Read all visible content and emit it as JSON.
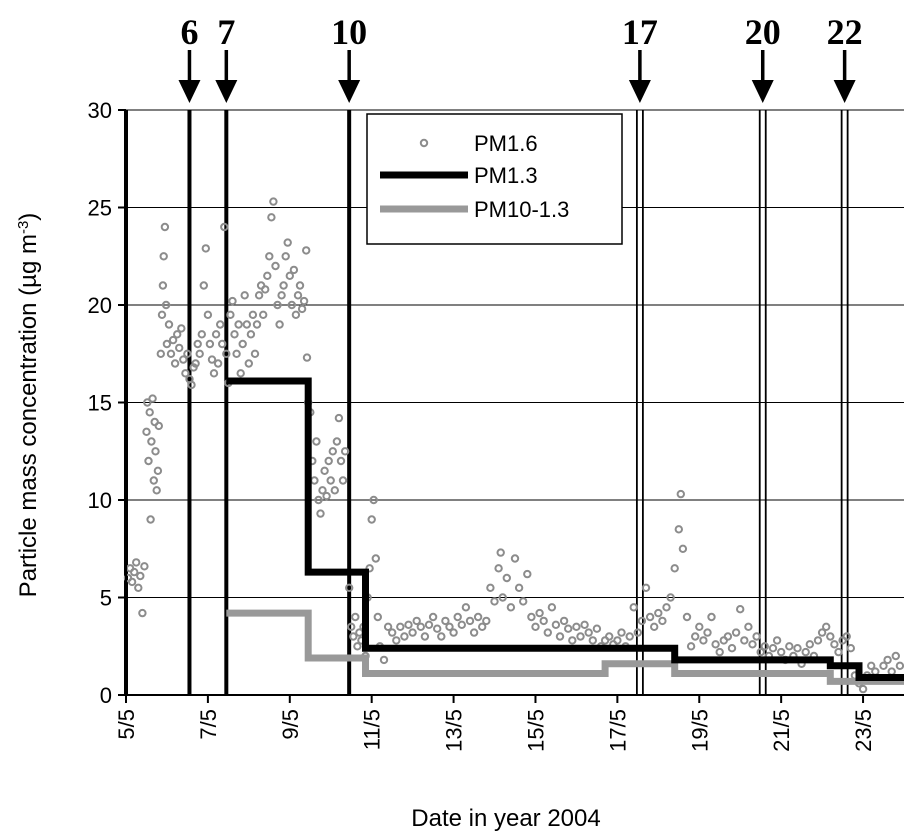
{
  "chart_data": {
    "type": "line",
    "xlabel": "Date in year 2004",
    "ylabel": "Particle mass concentration (µg m",
    "ylabel_sup": "-3",
    "ylabel_end": ")",
    "ylim": [
      0,
      30
    ],
    "yticks": [
      0,
      5,
      10,
      15,
      20,
      25,
      30
    ],
    "xlim": [
      5.0,
      24.0
    ],
    "xticks": [
      {
        "value": 5,
        "label": "5/5"
      },
      {
        "value": 7,
        "label": "7/5"
      },
      {
        "value": 9,
        "label": "9/5"
      },
      {
        "value": 11,
        "label": "11/5"
      },
      {
        "value": 13,
        "label": "13/5"
      },
      {
        "value": 15,
        "label": "15/5"
      },
      {
        "value": 17,
        "label": "17/5"
      },
      {
        "value": 19,
        "label": "19/5"
      },
      {
        "value": 21,
        "label": "21/5"
      },
      {
        "value": 23,
        "label": "23/5"
      }
    ],
    "grid": true,
    "legend_position": "top-center",
    "events": [
      {
        "label": "6",
        "day": 6.55
      },
      {
        "label": "7",
        "day": 7.45
      },
      {
        "label": "10",
        "day": 10.45
      },
      {
        "label": "17",
        "day": 17.55
      },
      {
        "label": "20",
        "day": 20.55
      },
      {
        "label": "22",
        "day": 22.55
      }
    ],
    "markers_single": [
      5.0,
      6.55,
      7.45,
      10.45
    ],
    "markers_double": [
      17.55,
      20.55,
      22.55
    ],
    "series": [
      {
        "name": "PM1.6",
        "style": "markers",
        "color": "#8c8c8c",
        "points": [
          [
            5.05,
            6.0
          ],
          [
            5.1,
            6.5
          ],
          [
            5.15,
            5.8
          ],
          [
            5.2,
            6.3
          ],
          [
            5.25,
            6.8
          ],
          [
            5.3,
            5.5
          ],
          [
            5.35,
            6.1
          ],
          [
            5.4,
            4.2
          ],
          [
            5.45,
            6.6
          ],
          [
            5.5,
            13.5
          ],
          [
            5.52,
            15.0
          ],
          [
            5.55,
            12.0
          ],
          [
            5.58,
            14.5
          ],
          [
            5.6,
            9.0
          ],
          [
            5.62,
            13.0
          ],
          [
            5.65,
            15.2
          ],
          [
            5.68,
            11.0
          ],
          [
            5.7,
            14.0
          ],
          [
            5.72,
            12.5
          ],
          [
            5.75,
            10.5
          ],
          [
            5.78,
            11.5
          ],
          [
            5.8,
            13.8
          ],
          [
            5.85,
            17.5
          ],
          [
            5.88,
            19.5
          ],
          [
            5.9,
            21.0
          ],
          [
            5.92,
            22.5
          ],
          [
            5.95,
            24.0
          ],
          [
            5.98,
            20.0
          ],
          [
            6.0,
            18.0
          ],
          [
            6.05,
            19.0
          ],
          [
            6.1,
            17.5
          ],
          [
            6.15,
            18.2
          ],
          [
            6.2,
            17.0
          ],
          [
            6.25,
            18.5
          ],
          [
            6.3,
            17.8
          ],
          [
            6.35,
            18.8
          ],
          [
            6.4,
            17.2
          ],
          [
            6.45,
            16.5
          ],
          [
            6.5,
            17.5
          ],
          [
            6.55,
            16.2
          ],
          [
            6.6,
            15.9
          ],
          [
            6.65,
            16.8
          ],
          [
            6.7,
            17.0
          ],
          [
            6.75,
            18.0
          ],
          [
            6.8,
            17.5
          ],
          [
            6.85,
            18.5
          ],
          [
            6.9,
            21.0
          ],
          [
            6.95,
            22.9
          ],
          [
            7.0,
            19.5
          ],
          [
            7.05,
            18.0
          ],
          [
            7.1,
            17.2
          ],
          [
            7.15,
            16.5
          ],
          [
            7.2,
            18.5
          ],
          [
            7.25,
            17.0
          ],
          [
            7.3,
            19.0
          ],
          [
            7.35,
            18.0
          ],
          [
            7.4,
            24.0
          ],
          [
            7.45,
            17.5
          ],
          [
            7.5,
            16.0
          ],
          [
            7.55,
            19.5
          ],
          [
            7.6,
            20.2
          ],
          [
            7.65,
            18.5
          ],
          [
            7.7,
            17.5
          ],
          [
            7.75,
            19.0
          ],
          [
            7.8,
            16.5
          ],
          [
            7.85,
            18.0
          ],
          [
            7.9,
            20.5
          ],
          [
            7.95,
            19.0
          ],
          [
            8.0,
            17.0
          ],
          [
            8.05,
            18.5
          ],
          [
            8.1,
            19.5
          ],
          [
            8.15,
            17.5
          ],
          [
            8.2,
            19.0
          ],
          [
            8.25,
            20.5
          ],
          [
            8.3,
            21.0
          ],
          [
            8.35,
            19.5
          ],
          [
            8.4,
            20.8
          ],
          [
            8.45,
            21.5
          ],
          [
            8.5,
            22.5
          ],
          [
            8.55,
            24.5
          ],
          [
            8.6,
            25.3
          ],
          [
            8.65,
            22.0
          ],
          [
            8.7,
            20.0
          ],
          [
            8.75,
            19.0
          ],
          [
            8.8,
            20.5
          ],
          [
            8.85,
            21.0
          ],
          [
            8.9,
            22.5
          ],
          [
            8.95,
            23.2
          ],
          [
            9.0,
            21.5
          ],
          [
            9.05,
            20.0
          ],
          [
            9.1,
            21.8
          ],
          [
            9.15,
            19.5
          ],
          [
            9.2,
            20.5
          ],
          [
            9.25,
            21.0
          ],
          [
            9.3,
            19.8
          ],
          [
            9.35,
            20.2
          ],
          [
            9.4,
            22.8
          ],
          [
            9.42,
            17.3
          ],
          [
            9.45,
            15.0
          ],
          [
            9.5,
            14.5
          ],
          [
            9.55,
            12.0
          ],
          [
            9.6,
            11.0
          ],
          [
            9.65,
            13.0
          ],
          [
            9.7,
            10.0
          ],
          [
            9.75,
            9.3
          ],
          [
            9.8,
            10.5
          ],
          [
            9.85,
            11.5
          ],
          [
            9.9,
            10.2
          ],
          [
            9.95,
            12.0
          ],
          [
            10.0,
            11.0
          ],
          [
            10.05,
            12.5
          ],
          [
            10.1,
            10.5
          ],
          [
            10.15,
            13.0
          ],
          [
            10.2,
            14.2
          ],
          [
            10.25,
            12.0
          ],
          [
            10.3,
            11.0
          ],
          [
            10.35,
            12.5
          ],
          [
            10.45,
            5.5
          ],
          [
            10.5,
            3.5
          ],
          [
            10.55,
            3.0
          ],
          [
            10.6,
            4.0
          ],
          [
            10.65,
            2.5
          ],
          [
            10.7,
            3.2
          ],
          [
            10.75,
            2.8
          ],
          [
            10.8,
            3.5
          ],
          [
            10.85,
            2.0
          ],
          [
            10.9,
            5.0
          ],
          [
            10.95,
            6.5
          ],
          [
            11.0,
            9.0
          ],
          [
            11.05,
            10.0
          ],
          [
            11.1,
            7.0
          ],
          [
            11.15,
            4.0
          ],
          [
            11.2,
            2.5
          ],
          [
            11.3,
            1.8
          ],
          [
            11.4,
            3.5
          ],
          [
            11.5,
            3.2
          ],
          [
            11.6,
            2.8
          ],
          [
            11.7,
            3.5
          ],
          [
            11.8,
            3.0
          ],
          [
            11.9,
            3.6
          ],
          [
            12.0,
            3.2
          ],
          [
            12.1,
            3.8
          ],
          [
            12.2,
            3.5
          ],
          [
            12.3,
            3.0
          ],
          [
            12.4,
            3.6
          ],
          [
            12.5,
            4.0
          ],
          [
            12.6,
            3.4
          ],
          [
            12.7,
            3.0
          ],
          [
            12.8,
            3.8
          ],
          [
            12.9,
            3.5
          ],
          [
            13.0,
            3.2
          ],
          [
            13.1,
            4.0
          ],
          [
            13.2,
            3.6
          ],
          [
            13.3,
            4.5
          ],
          [
            13.4,
            3.8
          ],
          [
            13.5,
            3.2
          ],
          [
            13.6,
            4.0
          ],
          [
            13.7,
            3.5
          ],
          [
            13.8,
            3.8
          ],
          [
            13.9,
            5.5
          ],
          [
            14.0,
            4.8
          ],
          [
            14.1,
            6.5
          ],
          [
            14.15,
            7.3
          ],
          [
            14.2,
            5.0
          ],
          [
            14.3,
            6.0
          ],
          [
            14.4,
            4.5
          ],
          [
            14.5,
            7.0
          ],
          [
            14.6,
            5.5
          ],
          [
            14.7,
            4.8
          ],
          [
            14.8,
            6.2
          ],
          [
            14.9,
            4.0
          ],
          [
            15.0,
            3.5
          ],
          [
            15.1,
            4.2
          ],
          [
            15.2,
            3.8
          ],
          [
            15.3,
            3.2
          ],
          [
            15.4,
            4.5
          ],
          [
            15.5,
            3.6
          ],
          [
            15.6,
            3.0
          ],
          [
            15.7,
            3.8
          ],
          [
            15.8,
            3.4
          ],
          [
            15.9,
            2.8
          ],
          [
            16.0,
            3.5
          ],
          [
            16.1,
            3.0
          ],
          [
            16.2,
            3.6
          ],
          [
            16.3,
            3.2
          ],
          [
            16.4,
            2.8
          ],
          [
            16.5,
            3.4
          ],
          [
            16.6,
            2.5
          ],
          [
            16.7,
            2.8
          ],
          [
            16.8,
            3.0
          ],
          [
            16.9,
            2.6
          ],
          [
            17.0,
            2.8
          ],
          [
            17.1,
            3.2
          ],
          [
            17.2,
            2.5
          ],
          [
            17.3,
            3.0
          ],
          [
            17.4,
            4.5
          ],
          [
            17.5,
            3.2
          ],
          [
            17.6,
            3.8
          ],
          [
            17.7,
            5.5
          ],
          [
            17.8,
            4.0
          ],
          [
            17.9,
            3.5
          ],
          [
            18.0,
            4.2
          ],
          [
            18.1,
            3.8
          ],
          [
            18.2,
            4.5
          ],
          [
            18.3,
            5.0
          ],
          [
            18.4,
            6.5
          ],
          [
            18.5,
            8.5
          ],
          [
            18.55,
            10.3
          ],
          [
            18.6,
            7.5
          ],
          [
            18.7,
            4.0
          ],
          [
            18.8,
            2.5
          ],
          [
            18.9,
            3.0
          ],
          [
            19.0,
            3.5
          ],
          [
            19.1,
            2.8
          ],
          [
            19.2,
            3.2
          ],
          [
            19.3,
            4.0
          ],
          [
            19.4,
            2.6
          ],
          [
            19.5,
            2.2
          ],
          [
            19.6,
            2.8
          ],
          [
            19.7,
            3.0
          ],
          [
            19.8,
            2.4
          ],
          [
            19.9,
            3.2
          ],
          [
            20.0,
            4.4
          ],
          [
            20.1,
            2.8
          ],
          [
            20.2,
            3.5
          ],
          [
            20.3,
            2.6
          ],
          [
            20.4,
            3.0
          ],
          [
            20.5,
            2.2
          ],
          [
            20.6,
            2.5
          ],
          [
            20.7,
            2.0
          ],
          [
            20.8,
            2.4
          ],
          [
            20.9,
            2.8
          ],
          [
            21.0,
            2.2
          ],
          [
            21.1,
            1.8
          ],
          [
            21.2,
            2.5
          ],
          [
            21.3,
            2.0
          ],
          [
            21.4,
            2.4
          ],
          [
            21.5,
            1.6
          ],
          [
            21.6,
            2.2
          ],
          [
            21.7,
            2.6
          ],
          [
            21.8,
            2.0
          ],
          [
            21.9,
            2.8
          ],
          [
            22.0,
            3.2
          ],
          [
            22.1,
            3.5
          ],
          [
            22.2,
            3.0
          ],
          [
            22.3,
            2.6
          ],
          [
            22.4,
            2.2
          ],
          [
            22.5,
            2.8
          ],
          [
            22.6,
            3.0
          ],
          [
            22.7,
            2.4
          ],
          [
            22.8,
            1.0
          ],
          [
            22.9,
            0.6
          ],
          [
            23.0,
            0.3
          ],
          [
            23.1,
            1.0
          ],
          [
            23.2,
            1.5
          ],
          [
            23.3,
            1.2
          ],
          [
            23.4,
            0.8
          ],
          [
            23.5,
            1.5
          ],
          [
            23.6,
            1.8
          ],
          [
            23.7,
            1.2
          ],
          [
            23.8,
            2.0
          ],
          [
            23.9,
            1.5
          ]
        ]
      },
      {
        "name": "PM1.3",
        "style": "line",
        "color": "#000000",
        "points": [
          [
            7.45,
            16.1
          ],
          [
            9.45,
            16.1
          ],
          [
            9.45,
            6.3
          ],
          [
            10.85,
            6.3
          ],
          [
            10.85,
            2.4
          ],
          [
            18.4,
            2.4
          ],
          [
            18.4,
            1.8
          ],
          [
            22.2,
            1.8
          ],
          [
            22.2,
            1.5
          ],
          [
            22.9,
            1.5
          ],
          [
            22.9,
            0.9
          ],
          [
            24.0,
            0.9
          ]
        ]
      },
      {
        "name": "PM10-1.3",
        "style": "line",
        "color": "#999999",
        "points": [
          [
            7.45,
            4.2
          ],
          [
            9.45,
            4.2
          ],
          [
            9.45,
            1.9
          ],
          [
            10.85,
            1.9
          ],
          [
            10.85,
            1.1
          ],
          [
            16.7,
            1.1
          ],
          [
            16.7,
            1.6
          ],
          [
            18.4,
            1.6
          ],
          [
            18.4,
            1.1
          ],
          [
            22.2,
            1.1
          ],
          [
            22.2,
            0.7
          ],
          [
            24.0,
            0.7
          ]
        ]
      }
    ]
  }
}
